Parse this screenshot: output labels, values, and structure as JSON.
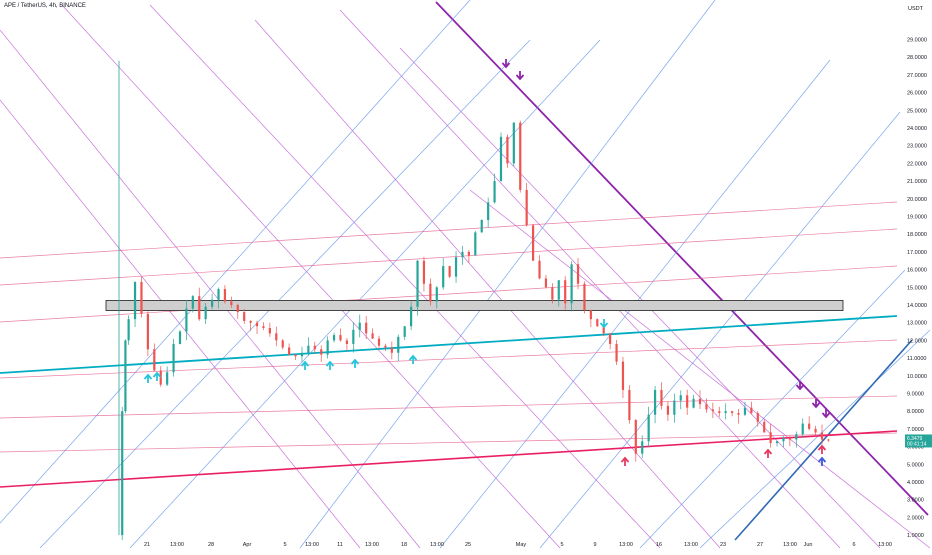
{
  "header": {
    "symbol_line": "APE / TetherUS, 4h, BINANCE"
  },
  "price_axis": {
    "currency": "USDT"
  },
  "last_price": {
    "value": "6.3479",
    "countdown": "00:41:14"
  },
  "colors": {
    "candle_up": "#26a69a",
    "candle_down": "#ef5350",
    "channel_purple": "#8e24aa",
    "channel_blue": "#3d6fd6",
    "red_support": "#e91e63",
    "cyan_support": "#00acc1",
    "arrow_up_cyan": "#26c6da",
    "arrow_down_purple": "#8e24aa",
    "arrow_up_red": "#e53961",
    "arrow_up_blue": "#3f5bd6"
  },
  "chart_data": {
    "type": "candlestick",
    "title": "APE / TetherUS, 4h, BINANCE",
    "y_axis": {
      "ylim": [
        0.5,
        30.5
      ],
      "ticks": [
        "29.0000",
        "28.0000",
        "27.0000",
        "26.0000",
        "25.0000",
        "24.0000",
        "23.0000",
        "22.0000",
        "21.0000",
        "20.0000",
        "19.0000",
        "18.0000",
        "17.0000",
        "16.0000",
        "15.0000",
        "14.0000",
        "13.0000",
        "12.0000",
        "11.0000",
        "10.0000",
        "9.0000",
        "8.0000",
        "7.0000",
        "6.0000",
        "5.0000",
        "4.0000",
        "3.0000",
        "2.0000",
        "1.0000"
      ]
    },
    "x_axis": {
      "ticks": [
        "21",
        "13:00",
        "28",
        "Apr",
        "5",
        "13:00",
        "11",
        "13:00",
        "18",
        "13:00",
        "25",
        "May",
        "5",
        "9",
        "13:00",
        "16",
        "13:00",
        "23",
        "27",
        "13:00",
        "Jun",
        "6",
        "13:00"
      ]
    },
    "close_path": [
      [
        0,
        1.0
      ],
      [
        1,
        8.0
      ],
      [
        2,
        12.0
      ],
      [
        3,
        13.2
      ],
      [
        5,
        15.3
      ],
      [
        7,
        13.5
      ],
      [
        9,
        11.5
      ],
      [
        11,
        10.3
      ],
      [
        13,
        9.5
      ],
      [
        15,
        10.2
      ],
      [
        17,
        11.8
      ],
      [
        19,
        12.5
      ],
      [
        21,
        13.8
      ],
      [
        23,
        14.5
      ],
      [
        25,
        13.2
      ],
      [
        27,
        13.9
      ],
      [
        29,
        14.3
      ],
      [
        31,
        14.9
      ],
      [
        33,
        14.2
      ],
      [
        35,
        14.0
      ],
      [
        37,
        13.6
      ],
      [
        39,
        13.1
      ],
      [
        41,
        13.0
      ],
      [
        43,
        12.8
      ],
      [
        45,
        12.7
      ],
      [
        47,
        12.4
      ],
      [
        49,
        12.0
      ],
      [
        51,
        11.6
      ],
      [
        53,
        11.2
      ],
      [
        55,
        11.1
      ],
      [
        57,
        11.3
      ],
      [
        59,
        11.7
      ],
      [
        61,
        11.5
      ],
      [
        63,
        11.2
      ],
      [
        65,
        12.0
      ],
      [
        67,
        12.3
      ],
      [
        69,
        12.0
      ],
      [
        71,
        11.8
      ],
      [
        73,
        12.6
      ],
      [
        75,
        13.0
      ],
      [
        77,
        12.4
      ],
      [
        79,
        12.1
      ],
      [
        81,
        11.7
      ],
      [
        83,
        11.6
      ],
      [
        85,
        11.3
      ],
      [
        87,
        12.2
      ],
      [
        89,
        12.8
      ],
      [
        91,
        13.9
      ],
      [
        93,
        16.5
      ],
      [
        95,
        15.2
      ],
      [
        97,
        14.2
      ],
      [
        99,
        15.0
      ],
      [
        101,
        16.2
      ],
      [
        103,
        15.6
      ],
      [
        105,
        16.7
      ],
      [
        107,
        17.0
      ],
      [
        109,
        16.8
      ],
      [
        111,
        18.1
      ],
      [
        113,
        18.8
      ],
      [
        115,
        19.8
      ],
      [
        117,
        21.0
      ],
      [
        119,
        23.5
      ],
      [
        121,
        22.0
      ],
      [
        123,
        24.3
      ],
      [
        125,
        20.5
      ],
      [
        127,
        18.5
      ],
      [
        129,
        16.5
      ],
      [
        131,
        15.5
      ],
      [
        133,
        15.0
      ],
      [
        135,
        14.3
      ],
      [
        137,
        15.4
      ],
      [
        139,
        14.1
      ],
      [
        141,
        16.3
      ],
      [
        143,
        15.2
      ],
      [
        145,
        13.7
      ],
      [
        147,
        13.2
      ],
      [
        149,
        12.8
      ],
      [
        151,
        12.4
      ],
      [
        153,
        11.8
      ],
      [
        155,
        10.8
      ],
      [
        157,
        9.2
      ],
      [
        159,
        7.5
      ],
      [
        161,
        5.6
      ],
      [
        163,
        6.3
      ],
      [
        165,
        7.8
      ],
      [
        167,
        9.2
      ],
      [
        169,
        8.3
      ],
      [
        171,
        7.8
      ],
      [
        173,
        8.6
      ],
      [
        175,
        8.9
      ],
      [
        177,
        8.2
      ],
      [
        179,
        8.7
      ],
      [
        181,
        8.4
      ],
      [
        183,
        8.1
      ],
      [
        185,
        8.0
      ],
      [
        187,
        7.9
      ],
      [
        189,
        8.0
      ],
      [
        191,
        7.9
      ],
      [
        193,
        7.8
      ],
      [
        195,
        8.2
      ],
      [
        197,
        7.9
      ],
      [
        199,
        7.4
      ],
      [
        201,
        6.8
      ],
      [
        203,
        6.2
      ],
      [
        205,
        6.3
      ],
      [
        207,
        6.5
      ],
      [
        209,
        6.4
      ],
      [
        211,
        6.7
      ],
      [
        213,
        7.3
      ],
      [
        215,
        7.0
      ],
      [
        217,
        6.8
      ],
      [
        219,
        6.4
      ],
      [
        221,
        6.35
      ]
    ],
    "horizontal_zone": {
      "from": 13.8,
      "to": 14.2
    },
    "annotations": {
      "up_arrows_cyan": 9,
      "down_arrows_purple": 5,
      "up_arrows_red": 3,
      "up_arrows_blue": 1
    }
  }
}
